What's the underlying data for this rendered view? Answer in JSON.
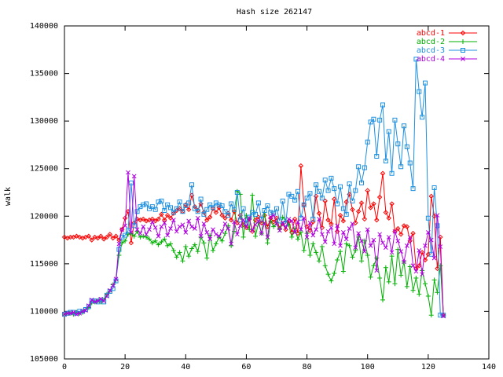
{
  "chart_data": {
    "type": "line",
    "title": "Hash size 262147",
    "y_label": "walk",
    "legend": "top-right",
    "x": [
      0,
      1,
      2,
      3,
      4,
      5,
      6,
      7,
      8,
      9,
      10,
      11,
      12,
      13,
      14,
      15,
      16,
      17,
      18,
      19,
      20,
      21,
      22,
      23,
      24,
      25,
      26,
      27,
      28,
      29,
      30,
      31,
      32,
      33,
      34,
      35,
      36,
      37,
      38,
      39,
      40,
      41,
      42,
      43,
      44,
      45,
      46,
      47,
      48,
      49,
      50,
      51,
      52,
      53,
      54,
      55,
      56,
      57,
      58,
      59,
      60,
      61,
      62,
      63,
      64,
      65,
      66,
      67,
      68,
      69,
      70,
      71,
      72,
      73,
      74,
      75,
      76,
      77,
      78,
      79,
      80,
      81,
      82,
      83,
      84,
      85,
      86,
      87,
      88,
      89,
      90,
      91,
      92,
      93,
      94,
      95,
      96,
      97,
      98,
      99,
      100,
      101,
      102,
      103,
      104,
      105,
      106,
      107,
      108,
      109,
      110,
      111,
      112,
      113,
      114,
      115,
      116,
      117,
      118,
      119,
      120,
      121,
      122,
      123,
      124,
      125
    ],
    "series": [
      {
        "name": "abcd-1",
        "color": "#ff0000",
        "marker": "diamond",
        "values": [
          117800,
          117700,
          117800,
          117800,
          117900,
          117800,
          117700,
          117800,
          117900,
          117500,
          117800,
          117700,
          117900,
          117600,
          117800,
          118100,
          117700,
          117900,
          117500,
          118600,
          119800,
          120500,
          117200,
          119300,
          119700,
          119600,
          119700,
          119500,
          119600,
          119700,
          119500,
          119700,
          120200,
          119600,
          120100,
          119800,
          120300,
          120600,
          120800,
          120500,
          121200,
          120700,
          122200,
          121000,
          120600,
          121300,
          120400,
          119600,
          119900,
          120800,
          120400,
          120900,
          120100,
          119800,
          120300,
          119600,
          120500,
          119300,
          120100,
          119100,
          118800,
          119700,
          118400,
          119600,
          119900,
          119300,
          120100,
          118900,
          119800,
          119400,
          119800,
          118700,
          119200,
          118600,
          119500,
          118300,
          119700,
          118200,
          125300,
          121200,
          118900,
          118500,
          119400,
          122100,
          120300,
          118800,
          121600,
          119600,
          119200,
          121800,
          118400,
          120100,
          119500,
          121500,
          122300,
          120700,
          119300,
          120500,
          121400,
          119700,
          122700,
          120900,
          121300,
          119600,
          122000,
          124500,
          120400,
          119800,
          121300,
          118400,
          118700,
          118100,
          119000,
          118900,
          117400,
          118200,
          114500,
          114800,
          116200,
          115400,
          116000,
          122100,
          120000,
          114500,
          117800,
          109600
        ]
      },
      {
        "name": "abcd-2",
        "color": "#00b000",
        "marker": "plus",
        "values": [
          109700,
          109800,
          109800,
          109700,
          109900,
          109800,
          109900,
          110200,
          110400,
          110900,
          111000,
          111100,
          111000,
          111200,
          111800,
          112100,
          112800,
          113300,
          115900,
          117200,
          117400,
          118100,
          118200,
          117900,
          118400,
          117800,
          117900,
          117800,
          117600,
          117200,
          117400,
          117000,
          117300,
          117600,
          116900,
          117100,
          116400,
          115700,
          116200,
          115300,
          116800,
          115800,
          116600,
          117000,
          116300,
          117800,
          117200,
          115600,
          118000,
          116400,
          117100,
          117800,
          117400,
          118200,
          119000,
          116900,
          118400,
          122600,
          122300,
          117800,
          120100,
          118600,
          122200,
          117900,
          119300,
          118200,
          120400,
          117200,
          119500,
          118900,
          119300,
          118600,
          119900,
          119500,
          119100,
          117800,
          118700,
          117600,
          118300,
          116400,
          118200,
          115900,
          117100,
          116200,
          115300,
          116800,
          114800,
          113900,
          113200,
          114000,
          115400,
          116300,
          114200,
          117100,
          116900,
          115700,
          116400,
          117800,
          115300,
          117400,
          115900,
          113600,
          114800,
          115600,
          113500,
          111200,
          114600,
          113100,
          115800,
          112900,
          116500,
          113800,
          115200,
          112600,
          114700,
          112200,
          113500,
          111800,
          114300,
          112900,
          111600,
          109600,
          113300,
          112000,
          114800,
          109600
        ]
      },
      {
        "name": "abcd-3",
        "color": "#1e90e0",
        "marker": "square",
        "values": [
          109700,
          109800,
          109900,
          109900,
          109800,
          110000,
          110000,
          110200,
          110500,
          111100,
          111100,
          111000,
          111200,
          111000,
          111700,
          112100,
          112400,
          113200,
          116500,
          117800,
          118000,
          118500,
          123500,
          119000,
          120500,
          121000,
          121200,
          121300,
          120800,
          121000,
          120700,
          121500,
          121600,
          120600,
          121200,
          120900,
          120400,
          120800,
          121500,
          120500,
          121100,
          121400,
          123300,
          120800,
          120500,
          121800,
          120200,
          120700,
          121200,
          120900,
          121400,
          121200,
          121100,
          120500,
          120100,
          121300,
          120700,
          122500,
          119600,
          120800,
          119300,
          119900,
          120400,
          120200,
          121400,
          119700,
          120600,
          121100,
          120400,
          120300,
          120800,
          119500,
          121600,
          119200,
          122300,
          122100,
          121700,
          122600,
          119800,
          121200,
          121900,
          122400,
          119700,
          123300,
          122600,
          121900,
          123800,
          122700,
          124000,
          122900,
          121300,
          123100,
          120800,
          120200,
          123400,
          121600,
          122700,
          125200,
          123500,
          125100,
          127800,
          129900,
          130200,
          126300,
          130100,
          131700,
          125800,
          128900,
          124500,
          130100,
          127600,
          125200,
          129500,
          127300,
          125600,
          122900,
          136500,
          133100,
          130400,
          134000,
          119800,
          116000,
          123000,
          119000,
          109600,
          109600
        ]
      },
      {
        "name": "abcd-4",
        "color": "#b000e0",
        "marker": "cross",
        "values": [
          109700,
          109800,
          109800,
          109900,
          109700,
          109800,
          110000,
          110100,
          110600,
          111200,
          111000,
          111100,
          111300,
          111100,
          111600,
          112200,
          112700,
          113400,
          117100,
          118600,
          119000,
          124600,
          118300,
          124200,
          118600,
          118200,
          118900,
          118100,
          118600,
          119400,
          118800,
          117900,
          118900,
          119300,
          118000,
          118700,
          119600,
          118400,
          118900,
          119100,
          118300,
          119500,
          118900,
          118700,
          119800,
          117900,
          119200,
          118300,
          117600,
          118600,
          118100,
          117900,
          118400,
          119200,
          118700,
          117100,
          119400,
          118100,
          119000,
          119600,
          118900,
          119800,
          118500,
          119100,
          119500,
          118200,
          119300,
          117800,
          119900,
          120100,
          119200,
          118500,
          119300,
          118800,
          119700,
          119500,
          118300,
          119400,
          118600,
          119800,
          117800,
          119300,
          118000,
          118600,
          119700,
          118100,
          117300,
          118400,
          118800,
          117100,
          119000,
          116900,
          118300,
          117600,
          118700,
          119200,
          116700,
          118200,
          117400,
          116300,
          118600,
          116900,
          117500,
          114300,
          118100,
          117200,
          116700,
          117800,
          116200,
          118400,
          117400,
          116300,
          115200,
          116900,
          117800,
          114800,
          114200,
          116400,
          113900,
          116900,
          118300,
          117500,
          115600,
          120100,
          116800,
          109500
        ]
      }
    ],
    "xlim": [
      0,
      140
    ],
    "xticks": [
      0,
      20,
      40,
      60,
      80,
      100,
      120,
      140
    ],
    "ylim": [
      105000,
      140000
    ],
    "yticks": [
      105000,
      110000,
      115000,
      120000,
      125000,
      130000,
      135000,
      140000
    ]
  }
}
